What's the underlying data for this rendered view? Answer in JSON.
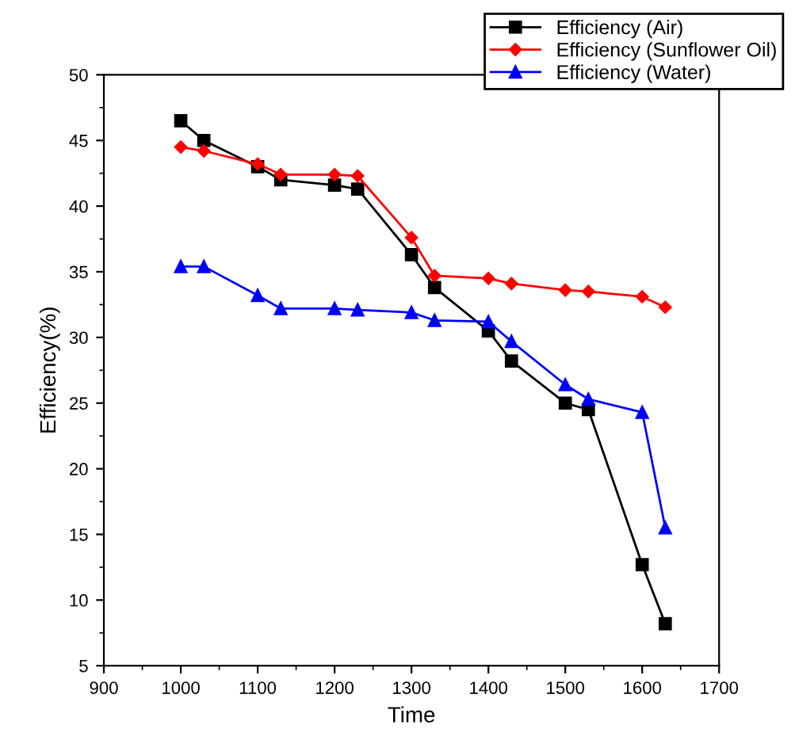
{
  "chart_data": {
    "type": "line",
    "xlabel": "Time",
    "ylabel": "Efficiency(%)",
    "x": [
      1000,
      1030,
      1100,
      1130,
      1200,
      1230,
      1300,
      1330,
      1400,
      1430,
      1500,
      1530,
      1600,
      1630
    ],
    "series": [
      {
        "name": "Efficiency (Air)",
        "color": "#000000",
        "marker": "square",
        "values": [
          46.5,
          45,
          43,
          42,
          41.6,
          41.3,
          36.3,
          33.8,
          30.5,
          28.2,
          25,
          24.5,
          12.7,
          8.2
        ]
      },
      {
        "name": "Efficiency (Sunflower Oil)",
        "color": "#ff0000",
        "marker": "diamond",
        "values": [
          44.5,
          44.2,
          43.2,
          42.4,
          42.4,
          42.3,
          37.6,
          34.7,
          34.5,
          34.1,
          33.6,
          33.5,
          33.1,
          32.3
        ]
      },
      {
        "name": "Efficiency (Water)",
        "color": "#0000ff",
        "marker": "triangle",
        "values": [
          35.4,
          35.4,
          33.2,
          32.2,
          32.2,
          32.1,
          31.9,
          31.3,
          31.2,
          29.7,
          26.4,
          25.3,
          24.3,
          15.5
        ]
      }
    ],
    "xlim": [
      900,
      1700
    ],
    "xticks": [
      900,
      1000,
      1100,
      1200,
      1300,
      1400,
      1500,
      1600,
      1700
    ],
    "ylim": [
      5,
      50
    ],
    "yticks": [
      5,
      10,
      15,
      20,
      25,
      30,
      35,
      40,
      45,
      50
    ],
    "grid": false,
    "legend": "top right",
    "line_style": "solid"
  }
}
